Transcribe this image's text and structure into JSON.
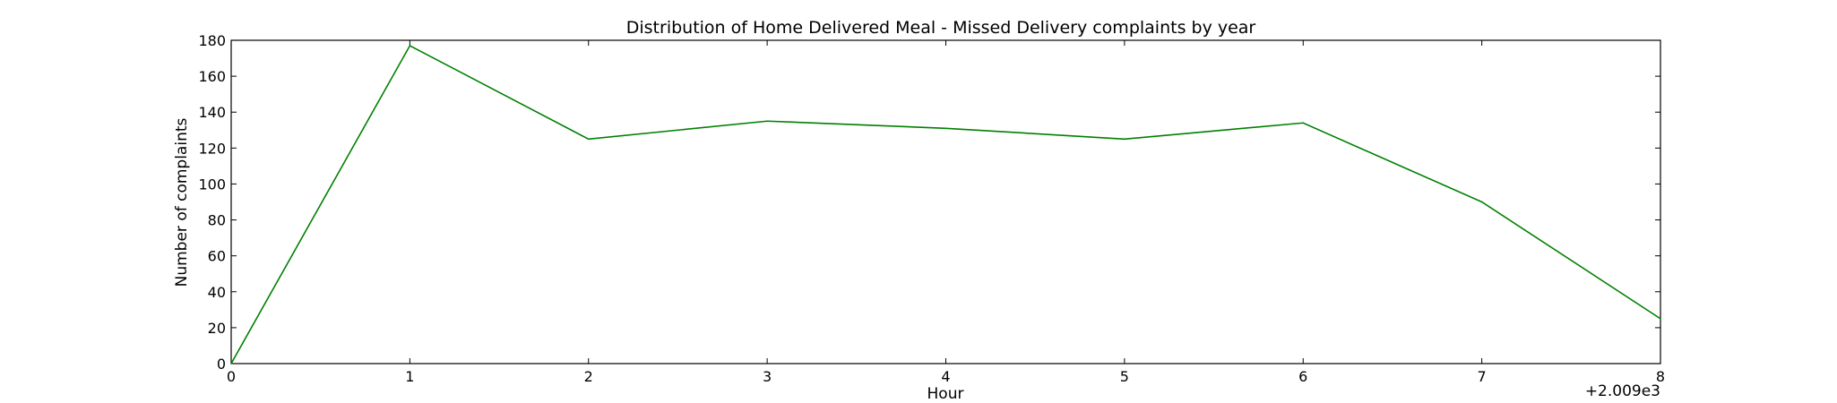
{
  "chart_data": {
    "type": "line",
    "title": "Distribution of  Home Delivered Meal - Missed Delivery complaints by year",
    "xlabel": "Hour",
    "ylabel": "Number of complaints",
    "x_offset_label": "+2.009e3",
    "xlim": [
      0,
      8
    ],
    "ylim": [
      0,
      180
    ],
    "xticks": [
      "0",
      "1",
      "2",
      "3",
      "4",
      "5",
      "6",
      "7",
      "8"
    ],
    "yticks": [
      "0",
      "20",
      "40",
      "60",
      "80",
      "100",
      "120",
      "140",
      "160",
      "180"
    ],
    "grid": false,
    "series": [
      {
        "color": "#008000",
        "x": [
          0,
          1,
          2,
          3,
          4,
          5,
          6,
          7,
          8
        ],
        "y": [
          0,
          177,
          125,
          135,
          131,
          125,
          134,
          90,
          25
        ]
      }
    ]
  }
}
